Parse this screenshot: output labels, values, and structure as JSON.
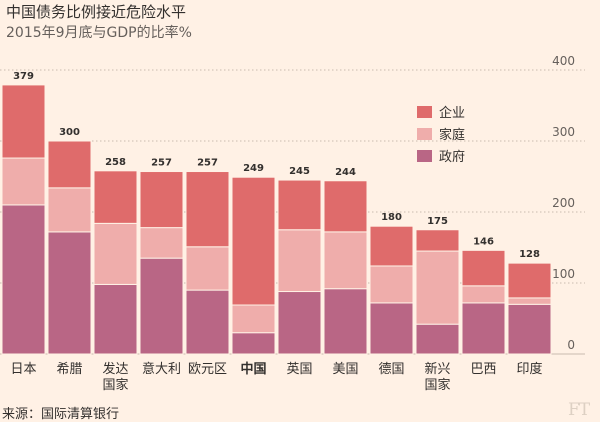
{
  "title": "中国债务比例接近危险水平",
  "subtitle": "2015年9月底与GDP的比率%",
  "source": "来源：国际清算银行",
  "logo": "FT",
  "colors": {
    "background": "#fff1e5",
    "corporate": "#df6b6b",
    "household": "#efadab",
    "government": "#b96685",
    "gridline": "#c9bcb0",
    "axis_text": "#66605c"
  },
  "chart_data": {
    "type": "bar",
    "stacked": true,
    "title": "中国债务比例接近危险水平",
    "subtitle": "2015年9月底与GDP的比率%",
    "categories": [
      "日本",
      "希腊",
      "发达\n国家",
      "意大利",
      "欧元区",
      "中国",
      "英国",
      "美国",
      "德国",
      "新兴\n国家",
      "巴西",
      "印度"
    ],
    "highlight_category": "中国",
    "series": [
      {
        "name": "政府",
        "color": "#b96685",
        "values": [
          210,
          172,
          98,
          135,
          90,
          30,
          88,
          92,
          72,
          42,
          72,
          70
        ]
      },
      {
        "name": "家庭",
        "color": "#efadab",
        "values": [
          66,
          62,
          86,
          43,
          61,
          39,
          87,
          80,
          52,
          103,
          24,
          9
        ]
      },
      {
        "name": "企业",
        "color": "#df6b6b",
        "values": [
          103,
          66,
          74,
          79,
          106,
          180,
          70,
          72,
          56,
          30,
          50,
          49
        ]
      }
    ],
    "totals": [
      379,
      300,
      258,
      257,
      257,
      249,
      245,
      244,
      180,
      175,
      146,
      128
    ],
    "ylim": [
      0,
      400
    ],
    "yticks": [
      0,
      100,
      200,
      300,
      400
    ],
    "grid": true,
    "legend_position": "top-right",
    "legend_order": [
      "企业",
      "家庭",
      "政府"
    ]
  }
}
